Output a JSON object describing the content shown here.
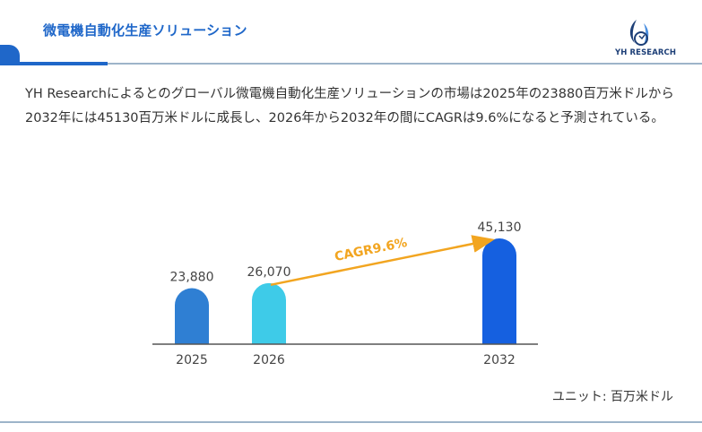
{
  "header": {
    "title": "微電機自動化生産ソリューション",
    "logo_text": "YH RESEARCH",
    "logo_icon": "yh-research-logo-icon",
    "accent_color": "#1f67c9"
  },
  "summary": "YH Researchによるとのグローバル微電機自動化生産ソリューションの市場は2025年の23880百万米ドルから2032年には45130百万米ドルに成長し、2026年から2032年の間にCAGRは9.6%になると予測されている。",
  "unit_label": "ユニット: 百万米ドル",
  "chart_data": {
    "type": "bar",
    "categories": [
      "2025",
      "2026",
      "2032"
    ],
    "values": [
      23880,
      26070,
      45130
    ],
    "value_labels": [
      "23,880",
      "26,070",
      "45,130"
    ],
    "colors": [
      "#2f7fd3",
      "#3ecbe8",
      "#1560e0"
    ],
    "annotation": {
      "text": "CAGR9.6%",
      "from": "2026",
      "to": "2032",
      "color": "#f2a520"
    },
    "title": "",
    "xlabel": "",
    "ylabel": ""
  }
}
